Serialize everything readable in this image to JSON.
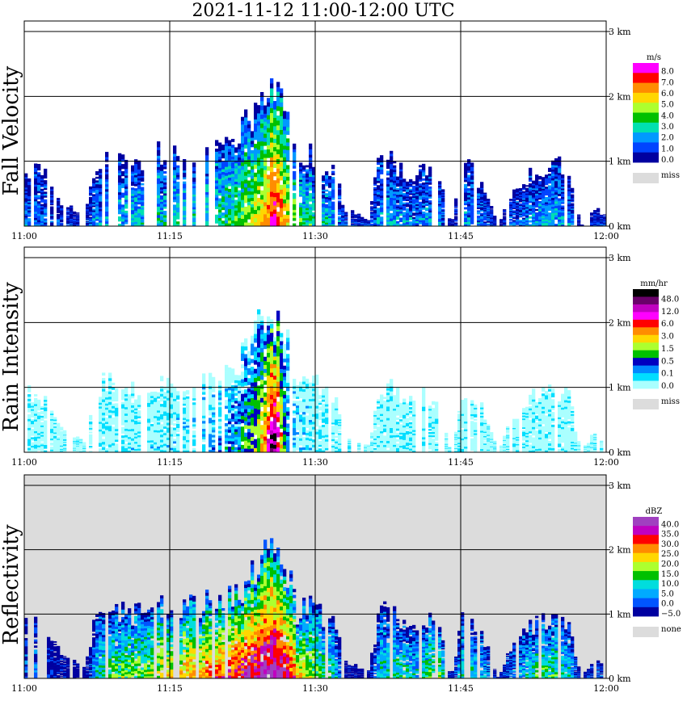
{
  "title": "2021-11-12   11:00-12:00 UTC",
  "colors": {
    "grid": "#000000",
    "background": "#ffffff",
    "missing": "#dcdcdc"
  },
  "chart_data": [
    {
      "type": "heatmap",
      "title": "Fall Velocity",
      "ylabel": "Fall Velocity",
      "xlabel": "",
      "x_ticks": [
        "11:00",
        "11:15",
        "11:30",
        "11:45",
        "12:00"
      ],
      "xlim": [
        "11:00",
        "12:00"
      ],
      "y_ticks": [
        "0 km",
        "1 km",
        "2 km",
        "3 km"
      ],
      "ylim_km": [
        0,
        3
      ],
      "grid": true,
      "background": "none",
      "legend": {
        "unit": "m/s",
        "levels": [
          "8.0",
          "7.0",
          "6.0",
          "5.0",
          "4.0",
          "3.0",
          "2.0",
          "1.0",
          "0.0"
        ],
        "colors": [
          "#ff00ff",
          "#ff0000",
          "#ff8c00",
          "#ffd700",
          "#adff2f",
          "#00c000",
          "#00e0b0",
          "#0099ff",
          "#0044ff",
          "#0000a0"
        ],
        "missing_label": "miss"
      },
      "profile_top_km": [
        0.95,
        1.05,
        0.8,
        0.4,
        0.3,
        0.2,
        1.1,
        1.15,
        1.1,
        1.05,
        1.1,
        1.2,
        1.2,
        1.15,
        1.2,
        1.25,
        1.3,
        1.35,
        1.5,
        1.8,
        2.1,
        2.25,
        1.9,
        1.1,
        1.2,
        1.05,
        1.0,
        0.3,
        0.2,
        0.1,
        1.15,
        1.1,
        0.9,
        0.85,
        1.0,
        0.8,
        0.0,
        1.0,
        0.9,
        0.6,
        0.0,
        0.5,
        0.7,
        0.9,
        1.0,
        1.05,
        0.9,
        0.0,
        0.3,
        0.2
      ],
      "profile_intensity": [
        1.5,
        1.5,
        1.2,
        1.0,
        0.8,
        0.8,
        2.0,
        2.0,
        2.2,
        2.3,
        2.4,
        2.5,
        2.5,
        2.6,
        2.6,
        2.8,
        3.0,
        3.2,
        3.5,
        4.0,
        5.0,
        7.5,
        5.0,
        3.5,
        3.0,
        2.5,
        2.2,
        1.0,
        1.0,
        1.0,
        2.0,
        2.0,
        2.0,
        1.5,
        2.0,
        2.0,
        0.0,
        1.8,
        1.8,
        1.5,
        0.0,
        1.2,
        1.5,
        2.0,
        2.2,
        2.0,
        1.8,
        0.0,
        1.0,
        1.0
      ]
    },
    {
      "type": "heatmap",
      "title": "Rain Intensity",
      "ylabel": "Rain Intensity",
      "xlabel": "",
      "x_ticks": [
        "11:00",
        "11:15",
        "11:30",
        "11:45",
        "12:00"
      ],
      "xlim": [
        "11:00",
        "12:00"
      ],
      "y_ticks": [
        "0 km",
        "1 km",
        "2 km",
        "3 km"
      ],
      "ylim_km": [
        0,
        3
      ],
      "grid": true,
      "background": "none",
      "legend": {
        "unit": "mm/hr",
        "levels": [
          "48.0",
          "12.0",
          "6.0",
          "3.0",
          "1.5",
          "0.5",
          "0.1",
          "0.0"
        ],
        "colors": [
          "#000000",
          "#6a006a",
          "#c000c0",
          "#ff00ff",
          "#ff0000",
          "#ff8c00",
          "#ffd700",
          "#adff2f",
          "#00c000",
          "#0000c0",
          "#0088ff",
          "#00ddff",
          "#aaffff"
        ],
        "missing_label": "miss"
      },
      "profile_top_km": [
        0.95,
        1.05,
        0.8,
        0.4,
        0.3,
        0.2,
        1.1,
        1.15,
        1.1,
        1.05,
        1.1,
        1.2,
        1.2,
        1.15,
        1.2,
        1.25,
        1.3,
        1.35,
        1.5,
        1.8,
        2.1,
        2.25,
        1.9,
        1.1,
        1.2,
        1.05,
        1.0,
        0.3,
        0.2,
        0.1,
        1.15,
        1.1,
        0.9,
        0.85,
        1.0,
        0.8,
        0.0,
        1.0,
        0.9,
        0.6,
        0.0,
        0.5,
        0.7,
        0.9,
        1.0,
        1.05,
        0.9,
        0.0,
        0.3,
        0.2
      ],
      "profile_intensity": [
        0.3,
        0.3,
        0.2,
        0.2,
        0.1,
        0.1,
        0.6,
        0.8,
        1.0,
        1.2,
        1.5,
        1.8,
        2.0,
        2.5,
        3.0,
        4.0,
        5.0,
        8.0,
        10.0,
        14.0,
        20.0,
        40.0,
        12.0,
        4.0,
        2.0,
        1.0,
        0.6,
        0.2,
        0.2,
        0.1,
        0.4,
        0.4,
        0.5,
        0.3,
        0.6,
        1.0,
        0.0,
        0.4,
        0.4,
        0.3,
        0.0,
        0.2,
        0.3,
        0.4,
        0.4,
        0.3,
        0.3,
        0.0,
        0.2,
        0.2
      ]
    },
    {
      "type": "heatmap",
      "title": "Reflectivity",
      "ylabel": "Reflectivity",
      "xlabel": "",
      "x_ticks": [
        "11:00",
        "11:15",
        "11:30",
        "11:45",
        "12:00"
      ],
      "xlim": [
        "11:00",
        "12:00"
      ],
      "y_ticks": [
        "0 km",
        "1 km",
        "2 km",
        "3 km"
      ],
      "ylim_km": [
        0,
        3
      ],
      "grid": true,
      "background": "missing-gray",
      "legend": {
        "unit": "dBZ",
        "levels": [
          "40.0",
          "35.0",
          "30.0",
          "25.0",
          "20.0",
          "15.0",
          "10.0",
          "5.0",
          "0.0",
          "−5.0"
        ],
        "colors": [
          "#a040c0",
          "#c000c0",
          "#ff0000",
          "#ff8c00",
          "#ffd700",
          "#adff2f",
          "#00c000",
          "#00dddd",
          "#00aaff",
          "#0055ff",
          "#0000a0"
        ],
        "missing_label": "none"
      },
      "profile_top_km": [
        0.95,
        1.05,
        0.8,
        0.4,
        0.3,
        0.2,
        1.1,
        1.15,
        1.1,
        1.05,
        1.1,
        1.2,
        1.2,
        1.15,
        1.2,
        1.25,
        1.3,
        1.35,
        1.5,
        1.8,
        2.1,
        2.25,
        1.9,
        1.1,
        1.2,
        1.05,
        1.0,
        0.3,
        0.2,
        0.1,
        1.15,
        1.1,
        0.9,
        0.85,
        1.0,
        0.8,
        0.0,
        1.0,
        0.9,
        0.6,
        0.0,
        0.5,
        0.7,
        0.9,
        1.0,
        1.05,
        0.9,
        0.0,
        0.3,
        0.2
      ],
      "profile_intensity": [
        5,
        5,
        2,
        0,
        0,
        -2,
        12,
        15,
        16,
        18,
        18,
        20,
        22,
        24,
        25,
        26,
        28,
        30,
        32,
        34,
        36,
        38,
        34,
        24,
        20,
        16,
        14,
        0,
        0,
        -2,
        12,
        12,
        14,
        10,
        16,
        18,
        0,
        12,
        12,
        10,
        0,
        8,
        10,
        14,
        16,
        14,
        12,
        0,
        5,
        5
      ]
    }
  ]
}
